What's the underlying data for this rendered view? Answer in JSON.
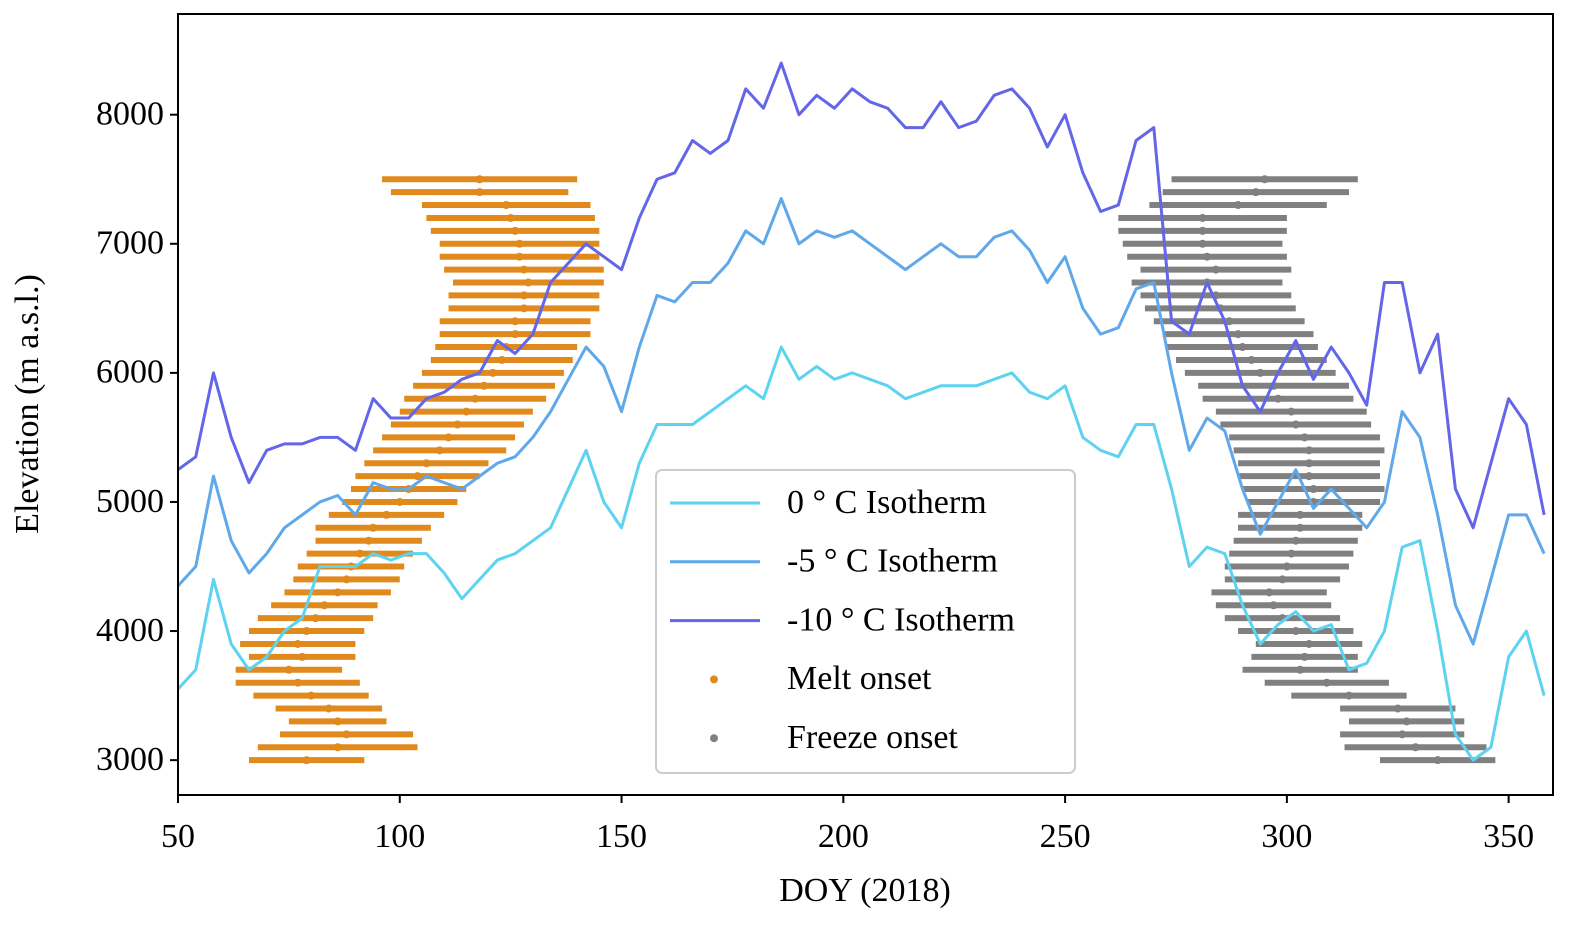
{
  "chart_data": {
    "type": "line",
    "xlabel": "DOY (2018)",
    "ylabel": "Elevation (m a.s.l.)",
    "xlim": [
      50,
      360
    ],
    "ylim": [
      2730,
      8780
    ],
    "xticks": [
      50,
      100,
      150,
      200,
      250,
      300,
      350
    ],
    "yticks": [
      3000,
      4000,
      5000,
      6000,
      7000,
      8000
    ],
    "legend": "lower center",
    "x": [
      50,
      54,
      58,
      62,
      66,
      70,
      74,
      78,
      82,
      86,
      90,
      94,
      98,
      102,
      106,
      110,
      114,
      118,
      122,
      126,
      130,
      134,
      138,
      142,
      146,
      150,
      154,
      158,
      162,
      166,
      170,
      174,
      178,
      182,
      186,
      190,
      194,
      198,
      202,
      206,
      210,
      214,
      218,
      222,
      226,
      230,
      234,
      238,
      242,
      246,
      250,
      254,
      258,
      262,
      266,
      270,
      274,
      278,
      282,
      286,
      290,
      294,
      298,
      302,
      306,
      310,
      314,
      318,
      322,
      326,
      330,
      334,
      338,
      342,
      346,
      350,
      354,
      358
    ],
    "series": [
      {
        "name": "0 ° C Isotherm",
        "color": "#5dd3f0",
        "values": [
          3550,
          3700,
          4400,
          3900,
          3700,
          3800,
          4000,
          4100,
          4500,
          4500,
          4500,
          4600,
          4550,
          4600,
          4600,
          4450,
          4250,
          4400,
          4550,
          4600,
          4700,
          4800,
          5100,
          5400,
          5000,
          4800,
          5300,
          5600,
          5600,
          5600,
          5700,
          5800,
          5900,
          5800,
          6200,
          5950,
          6050,
          5950,
          6000,
          5950,
          5900,
          5800,
          5850,
          5900,
          5900,
          5900,
          5950,
          6000,
          5850,
          5800,
          5900,
          5500,
          5400,
          5350,
          5600,
          5600,
          5100,
          4500,
          4650,
          4600,
          4200,
          3900,
          4050,
          4150,
          4000,
          4050,
          3700,
          3750,
          4000,
          4650,
          4700,
          4000,
          3200,
          3000,
          3100,
          3800,
          4000,
          3500
        ]
      },
      {
        "name": "-5 ° C Isotherm",
        "color": "#5fa8ea",
        "values": [
          4350,
          4500,
          5200,
          4700,
          4450,
          4600,
          4800,
          4900,
          5000,
          5050,
          4900,
          5150,
          5100,
          5100,
          5200,
          5150,
          5100,
          5200,
          5300,
          5350,
          5500,
          5700,
          5950,
          6200,
          6050,
          5700,
          6200,
          6600,
          6550,
          6700,
          6700,
          6850,
          7100,
          7000,
          7350,
          7000,
          7100,
          7050,
          7100,
          7000,
          6900,
          6800,
          6900,
          7000,
          6900,
          6900,
          7050,
          7100,
          6950,
          6700,
          6900,
          6500,
          6300,
          6350,
          6650,
          6700,
          6000,
          5400,
          5650,
          5550,
          5100,
          4750,
          5000,
          5250,
          4950,
          5100,
          4950,
          4800,
          5000,
          5700,
          5500,
          4900,
          4200,
          3900,
          4400,
          4900,
          4900,
          4600
        ]
      },
      {
        "name": "-10 ° C Isotherm",
        "color": "#6366e8",
        "values": [
          5250,
          5350,
          6000,
          5500,
          5150,
          5400,
          5450,
          5450,
          5500,
          5500,
          5400,
          5800,
          5650,
          5650,
          5800,
          5850,
          5950,
          6000,
          6250,
          6150,
          6300,
          6700,
          6850,
          7000,
          6900,
          6800,
          7200,
          7500,
          7550,
          7800,
          7700,
          7800,
          8200,
          8050,
          8400,
          8000,
          8150,
          8050,
          8200,
          8100,
          8050,
          7900,
          7900,
          8100,
          7900,
          7950,
          8150,
          8200,
          8050,
          7750,
          8000,
          7550,
          7250,
          7300,
          7800,
          7900,
          6400,
          6300,
          6700,
          6400,
          5900,
          5700,
          6000,
          6250,
          5950,
          6200,
          6000,
          5750,
          6700,
          6700,
          6000,
          6300,
          5100,
          4800,
          5300,
          5800,
          5600,
          4900
        ]
      },
      {
        "name": "Melt onset",
        "kind": "errorbar",
        "color": "#e08a1e",
        "values": [
          3000,
          3100,
          3200,
          3300,
          3400,
          3500,
          3600,
          3700,
          3800,
          3900,
          4000,
          4100,
          4200,
          4300,
          4400,
          4500,
          4600,
          4700,
          4800,
          4900,
          5000,
          5100,
          5200,
          5300,
          5400,
          5500,
          5600,
          5700,
          5800,
          5900,
          6000,
          6100,
          6200,
          6300,
          6400,
          6500,
          6600,
          6700,
          6800,
          6900,
          7000,
          7100,
          7200,
          7300,
          7400,
          7500
        ],
        "x": [
          79,
          86,
          88,
          86,
          84,
          80,
          77,
          75,
          78,
          77,
          79,
          81,
          83,
          86,
          88,
          89,
          91,
          93,
          94,
          97,
          100,
          102,
          104,
          106,
          109,
          111,
          113,
          115,
          117,
          119,
          121,
          123,
          124,
          126,
          126,
          128,
          128,
          129,
          128,
          127,
          127,
          126,
          125,
          124,
          118,
          118
        ],
        "xerr": [
          13,
          18,
          15,
          11,
          12,
          13,
          14,
          12,
          12,
          13,
          13,
          13,
          12,
          12,
          12,
          12,
          12,
          12,
          13,
          13,
          13,
          13,
          14,
          14,
          15,
          15,
          15,
          15,
          16,
          16,
          16,
          16,
          16,
          17,
          17,
          17,
          17,
          17,
          18,
          18,
          18,
          19,
          19,
          19,
          20,
          22
        ]
      },
      {
        "name": "Freeze onset",
        "kind": "errorbar",
        "color": "#808080",
        "values": [
          3000,
          3100,
          3200,
          3300,
          3400,
          3500,
          3600,
          3700,
          3800,
          3900,
          4000,
          4100,
          4200,
          4300,
          4400,
          4500,
          4600,
          4700,
          4800,
          4900,
          5000,
          5100,
          5200,
          5300,
          5400,
          5500,
          5600,
          5700,
          5800,
          5900,
          6000,
          6100,
          6200,
          6300,
          6400,
          6500,
          6600,
          6700,
          6800,
          6900,
          7000,
          7100,
          7200,
          7300,
          7400,
          7500
        ],
        "x": [
          334,
          329,
          326,
          327,
          325,
          314,
          309,
          303,
          304,
          305,
          302,
          299,
          297,
          296,
          299,
          300,
          301,
          302,
          303,
          303,
          306,
          306,
          305,
          305,
          305,
          304,
          302,
          301,
          298,
          297,
          294,
          292,
          290,
          289,
          287,
          285,
          284,
          282,
          284,
          282,
          281,
          281,
          281,
          289,
          293,
          295
        ],
        "xerr": [
          13,
          16,
          14,
          13,
          13,
          13,
          14,
          13,
          12,
          12,
          13,
          13,
          13,
          13,
          13,
          14,
          14,
          14,
          14,
          14,
          15,
          16,
          16,
          16,
          17,
          17,
          17,
          17,
          17,
          17,
          17,
          17,
          17,
          17,
          17,
          17,
          17,
          17,
          17,
          18,
          18,
          19,
          19,
          20,
          21,
          21
        ]
      }
    ]
  }
}
